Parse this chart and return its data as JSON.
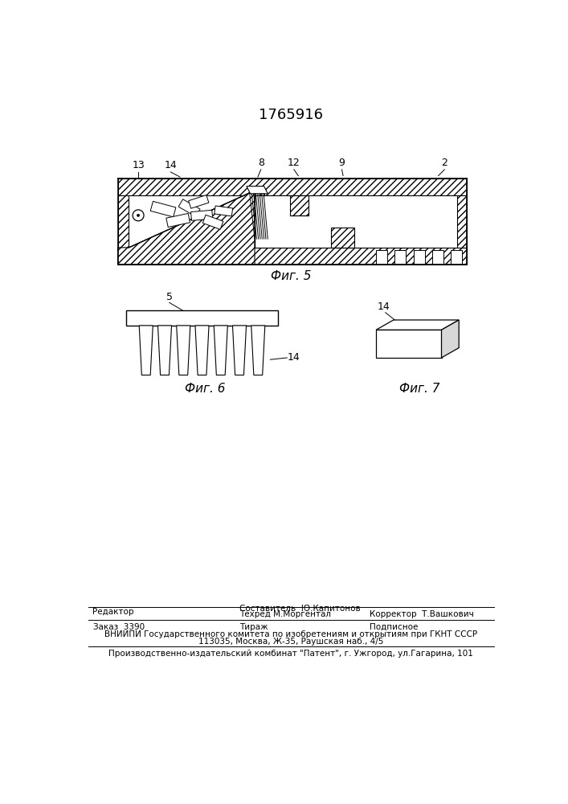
{
  "title": "1765916",
  "bg_color": "#ffffff",
  "fig5_label": "Фиг. 5",
  "fig6_label": "Фиг. 6",
  "fig7_label": "Фиг. 7",
  "footer_line1_left": "Редактор",
  "footer_line1_center1": "Составитель  Ю.Капитонов",
  "footer_line1_center2": "Техред М.Моргентал",
  "footer_line1_right": "Корректор  Т.Вашкович",
  "footer_line2_left": "Заказ  3390",
  "footer_line2_center": "Тираж",
  "footer_line2_right": "Подписное",
  "footer_line3": "ВНИИПИ Государственного комитета по изобретениям и открытиям при ГКНТ СССР",
  "footer_line4": "113035, Москва, Ж-35, Раушская наб., 4/5",
  "footer_line5": "Производственно-издательский комбинат \"Патент\", г. Ужгород, ул.Гагарина, 101"
}
